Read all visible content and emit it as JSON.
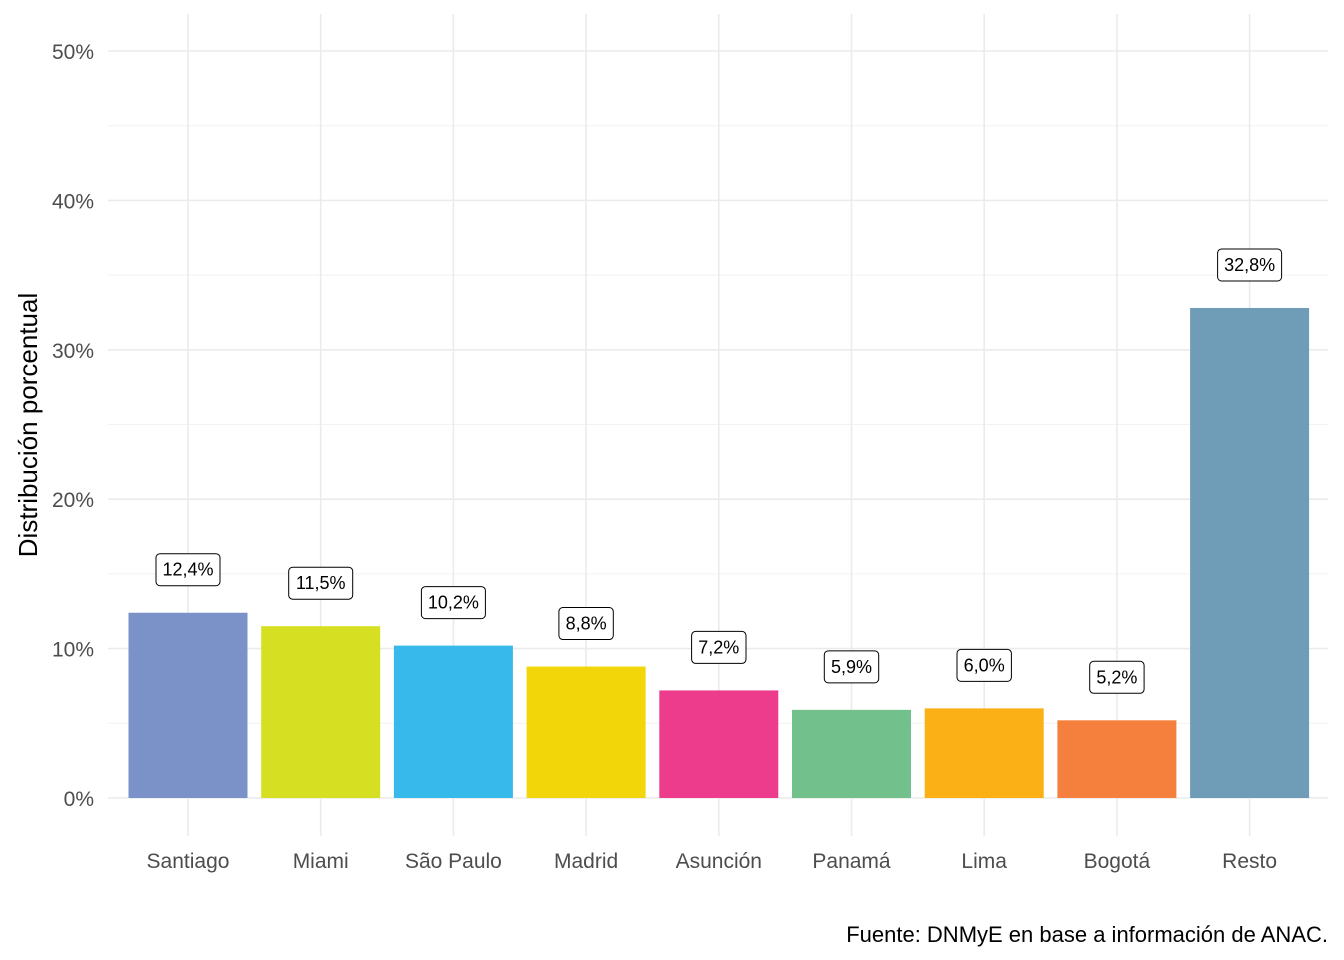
{
  "chart_data": {
    "type": "bar",
    "categories": [
      "Santiago",
      "Miami",
      "São Paulo",
      "Madrid",
      "Asunción",
      "Panamá",
      "Lima",
      "Bogotá",
      "Resto"
    ],
    "values": [
      12.4,
      11.5,
      10.2,
      8.8,
      7.2,
      5.9,
      6.0,
      5.2,
      32.8
    ],
    "data_labels": [
      "12,4%",
      "11,5%",
      "10,2%",
      "8,8%",
      "7,2%",
      "5,9%",
      "6,0%",
      "5,2%",
      "32,8%"
    ],
    "colors": [
      "#7b92c9",
      "#d7df22",
      "#38b9eb",
      "#f3d60a",
      "#ec3c8b",
      "#72c18c",
      "#fbb116",
      "#f57f3c",
      "#6f9db7"
    ],
    "ylabel": "Distribución porcentual",
    "xlabel": "",
    "ylim": [
      0,
      50
    ],
    "yticks": [
      0,
      10,
      20,
      30,
      40,
      50
    ],
    "ytick_labels": [
      "0%",
      "10%",
      "20%",
      "30%",
      "40%",
      "50%"
    ],
    "grid": true,
    "legend": "none",
    "caption": "Fuente: DNMyE en base a información de ANAC."
  }
}
